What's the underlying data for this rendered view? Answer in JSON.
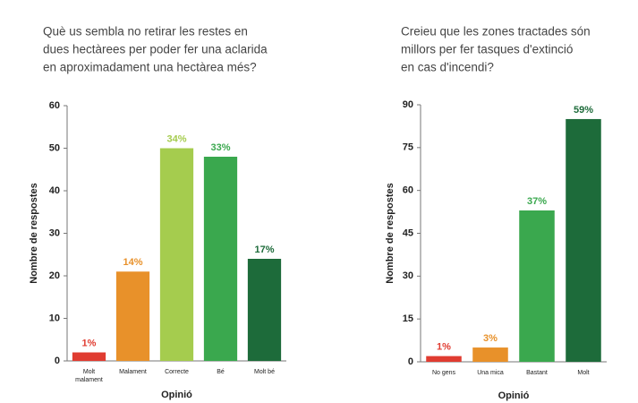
{
  "chart_data": [
    {
      "type": "bar",
      "title": [
        "Què us sembla no retirar les restes en",
        "dues hectàrees per poder fer una aclarida",
        "en aproximadament una hectàrea més?"
      ],
      "ylabel": "Nombre de respostes",
      "xlabel": "Opinió",
      "categories": [
        "Molt malament",
        "Malament",
        "Correcte",
        "Bé",
        "Molt bé"
      ],
      "values": [
        2,
        21,
        50,
        48,
        24
      ],
      "value_labels": [
        "1%",
        "14%",
        "34%",
        "33%",
        "17%"
      ],
      "colors": [
        "#e03c31",
        "#e8912a",
        "#a5cc4e",
        "#3aa84e",
        "#1d6b3a"
      ],
      "ylim": [
        0,
        60
      ],
      "yticks": [
        0,
        10,
        20,
        30,
        40,
        50,
        60
      ]
    },
    {
      "type": "bar",
      "title": [
        "Creieu que les zones tractades són",
        "millors per fer tasques d'extinció",
        "en cas d'incendi?"
      ],
      "ylabel": "Nombre de respostes",
      "xlabel": "Opinió",
      "categories": [
        "No gens",
        "Una mica",
        "Bastant",
        "Molt"
      ],
      "values": [
        2,
        5,
        53,
        85
      ],
      "value_labels": [
        "1%",
        "3%",
        "37%",
        "59%"
      ],
      "colors": [
        "#e03c31",
        "#e8912a",
        "#3aa84e",
        "#1d6b3a"
      ],
      "ylim": [
        0,
        90
      ],
      "yticks": [
        0,
        15,
        30,
        45,
        60,
        75,
        90
      ]
    }
  ]
}
